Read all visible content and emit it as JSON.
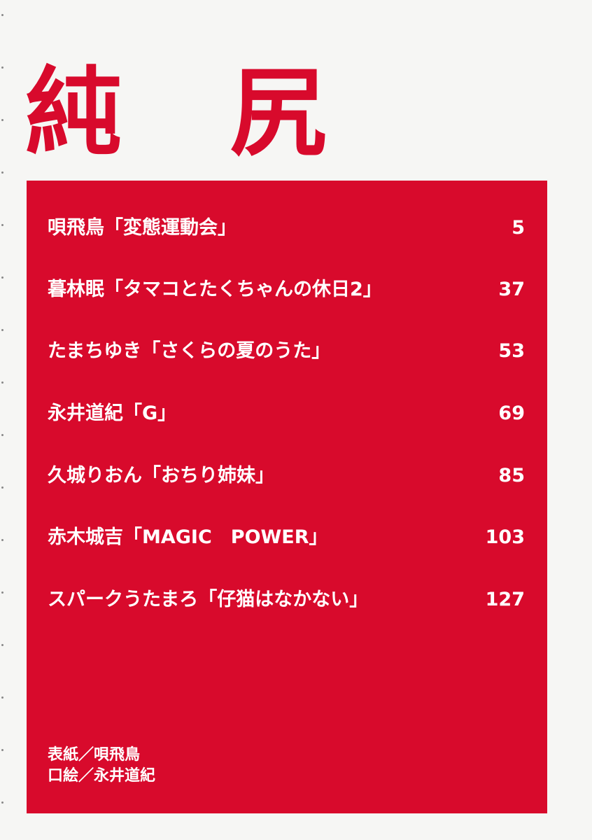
{
  "colors": {
    "accent": "#d80a2c",
    "text_on_accent": "#ffffff",
    "paper": "#f6f6f4"
  },
  "title": {
    "char1": "純",
    "char2": "尻"
  },
  "contents": [
    {
      "entry": "唄飛鳥「変態運動会」",
      "page": "5"
    },
    {
      "entry": "暮林眠「タマコとたくちゃんの休日2」",
      "page": "37"
    },
    {
      "entry": "たまちゆき「さくらの夏のうた」",
      "page": "53"
    },
    {
      "entry": "永井道紀「G」",
      "page": "69"
    },
    {
      "entry": "久城りおん「おちり姉妹」",
      "page": "85"
    },
    {
      "entry": "赤木城吉「MAGIC　POWER」",
      "page": "103"
    },
    {
      "entry": "スパークうたまろ「仔猫はなかない」",
      "page": "127"
    }
  ],
  "credits": [
    "表紙／唄飛鳥",
    "口絵／永井道紀"
  ]
}
